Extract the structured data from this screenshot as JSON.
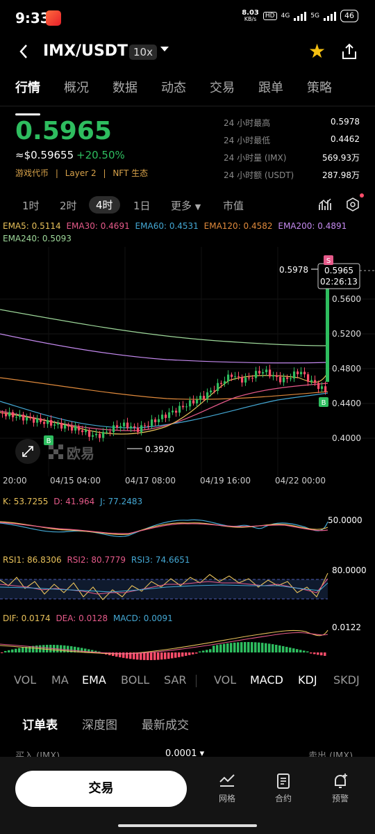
{
  "status_bar": {
    "time": "9:33",
    "net_speed": "8.03",
    "net_unit": "KB/s",
    "hd": "HD",
    "sig_4g": "4G",
    "sig_5g": "5G",
    "battery": "46"
  },
  "header": {
    "pair": "IMX/USDT",
    "leverage": "10x",
    "favorite_color": "#f5c012"
  },
  "tabs": [
    "行情",
    "概况",
    "数据",
    "动态",
    "交易",
    "跟单",
    "策略"
  ],
  "ticker": {
    "last_price": "0.5965",
    "usd_price": "≈$0.59655",
    "change": "+20.50%",
    "tag1": "游戏代币",
    "tag2": "Layer 2",
    "tag3": "NFT 生态",
    "sep": "|",
    "up_color": "#2ebd5f",
    "down_color": "#ff4d6a"
  },
  "stats": [
    {
      "label": "24 小时最高",
      "value": "0.5978"
    },
    {
      "label": "24 小时最低",
      "value": "0.4462"
    },
    {
      "label": "24 小时量 (IMX)",
      "value": "569.93万"
    },
    {
      "label": "24 小时额 (USDT)",
      "value": "287.98万"
    }
  ],
  "periods": {
    "p1": "1时",
    "p2": "2时",
    "p3": "4时",
    "p4": "1日",
    "more": "更多",
    "mcap": "市值"
  },
  "ema_legend": {
    "ema5": "EMA5: 0.5114",
    "ema30": "EMA30: 0.4691",
    "ema60": "EMA60: 0.4531",
    "ema120": "EMA120: 0.4582",
    "ema200": "EMA200: 0.4891",
    "ema240": "EMA240: 0.5093"
  },
  "ema_colors": {
    "ema5": "#e8c15a",
    "ema30": "#e65a8a",
    "ema60": "#44a8d4",
    "ema120": "#e08a3c",
    "ema200": "#c58af0",
    "ema240": "#9ed89a"
  },
  "main_chart": {
    "price_labels": [
      "0.5600",
      "0.5200",
      "0.4800",
      "0.4400",
      "0.4000"
    ],
    "price_values": [
      0.56,
      0.52,
      0.48,
      0.44,
      0.4
    ],
    "high_label": "0.5978",
    "low_label": "0.3920",
    "current_price": "0.5965",
    "countdown": "02:26:13",
    "date_labels": [
      "20:00",
      "04/15 04:00",
      "04/17 08:00",
      "04/19 16:00",
      "04/22 00:00"
    ],
    "marker_b": "B",
    "marker_s": "S",
    "watermark": "欧易"
  },
  "kdj": {
    "k": "K: 53.7255",
    "d": "D: 41.964",
    "j": "J: 77.2483",
    "level": "50.0000"
  },
  "rsi": {
    "rsi1": "RSI1: 86.8306",
    "rsi2": "RSI2: 80.7779",
    "rsi3": "RSI3: 74.6651",
    "level": "80.0000"
  },
  "macd": {
    "dif": "DIF: 0.0174",
    "dea": "DEA: 0.0128",
    "macd": "MACD: 0.0091",
    "level": "0.0122"
  },
  "indicator_tabs": {
    "main": [
      "VOL",
      "MA",
      "EMA",
      "BOLL",
      "SAR"
    ],
    "sub": [
      "VOL",
      "MACD",
      "KDJ",
      "SKDJ"
    ]
  },
  "order_tabs": [
    "订单表",
    "深度图",
    "最新成交"
  ],
  "orderbook": {
    "buy": "买入 (IMX)",
    "precision": "0.0001",
    "sell": "卖出 (IMX)"
  },
  "bottom": {
    "trade": "交易",
    "grid": "网格",
    "contract": "合约",
    "alert": "预警"
  }
}
